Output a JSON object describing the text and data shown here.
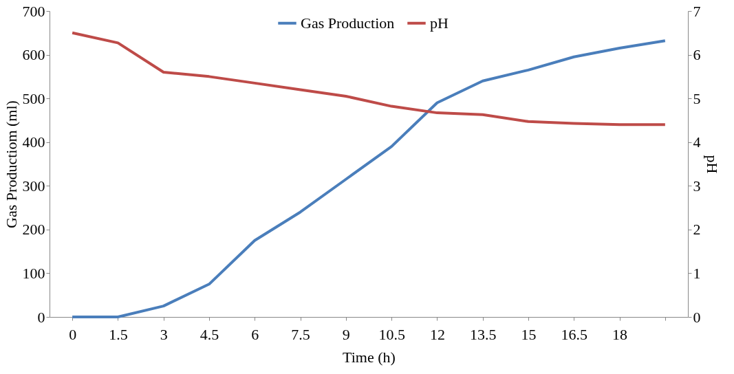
{
  "chart_data": {
    "type": "line",
    "xlabel": "Time (h)",
    "ylabel": "Gas  Productiom (ml)",
    "y2label": "pH",
    "categories": [
      "0",
      "1.5",
      "3",
      "4.5",
      "6",
      "7.5",
      "9",
      "10.5",
      "12",
      "13.5",
      "15",
      "16.5",
      "18",
      null
    ],
    "series": [
      {
        "name": "Gas Production",
        "color": "#4a7ebb",
        "values": [
          0,
          0,
          25,
          75,
          175,
          240,
          315,
          390,
          490,
          540,
          565,
          595,
          615,
          632
        ]
      },
      {
        "name": "pH",
        "color": "#be4b48",
        "axis": "y2",
        "values": [
          6.5,
          6.27,
          5.6,
          5.5,
          5.35,
          5.2,
          5.05,
          4.82,
          4.67,
          4.63,
          4.47,
          4.43,
          4.4,
          4.4
        ]
      }
    ],
    "ylim": [
      0,
      700
    ],
    "yticks": [
      0,
      100,
      200,
      300,
      400,
      500,
      600,
      700
    ],
    "y2lim": [
      0,
      7
    ],
    "y2ticks": [
      0,
      1,
      2,
      3,
      4,
      5,
      6,
      7
    ],
    "grid": false,
    "legend": "top",
    "marker": "none",
    "line_style": "solid"
  }
}
